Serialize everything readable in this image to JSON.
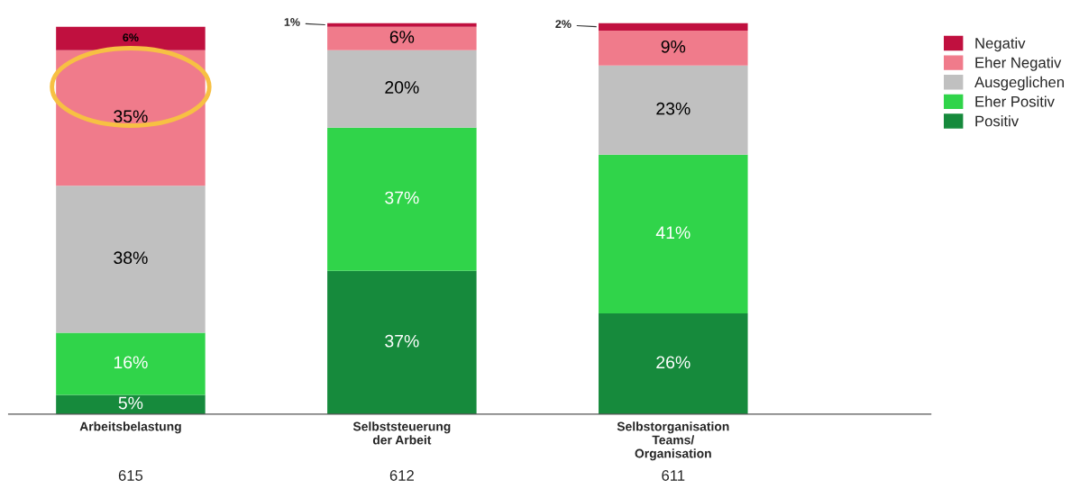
{
  "chart_data": {
    "type": "bar",
    "stacked": true,
    "legend": "top right",
    "grid": false,
    "categories": [
      "Arbeitsbelastung",
      "Selbststeuerung\nder Arbeit",
      "Selbstorganisation\nTeams/\nOrganisation"
    ],
    "series": [
      {
        "name": "Positiv",
        "color": "#168a3c",
        "values": [
          5,
          37,
          26
        ],
        "value_labels": [
          "5%",
          "37%",
          "26%"
        ]
      },
      {
        "name": "Eher Positiv",
        "color": "#30d44a",
        "values": [
          16,
          37,
          41
        ],
        "value_labels": [
          "16%",
          "37%",
          "41%"
        ]
      },
      {
        "name": "Ausgeglichen",
        "color": "#c0c0c0",
        "values": [
          38,
          20,
          23
        ],
        "value_labels": [
          "38%",
          "20%",
          "23%"
        ]
      },
      {
        "name": "Eher Negativ",
        "color": "#f07b8b",
        "values": [
          35,
          6,
          9
        ],
        "value_labels": [
          "35%",
          "6%",
          "9%"
        ]
      },
      {
        "name": "Negativ",
        "color": "#c0103f",
        "values": [
          6,
          1,
          2
        ],
        "value_labels": [
          "6%",
          "1%",
          "2%"
        ]
      }
    ],
    "annotations": [
      "615",
      "612",
      "611"
    ]
  }
}
